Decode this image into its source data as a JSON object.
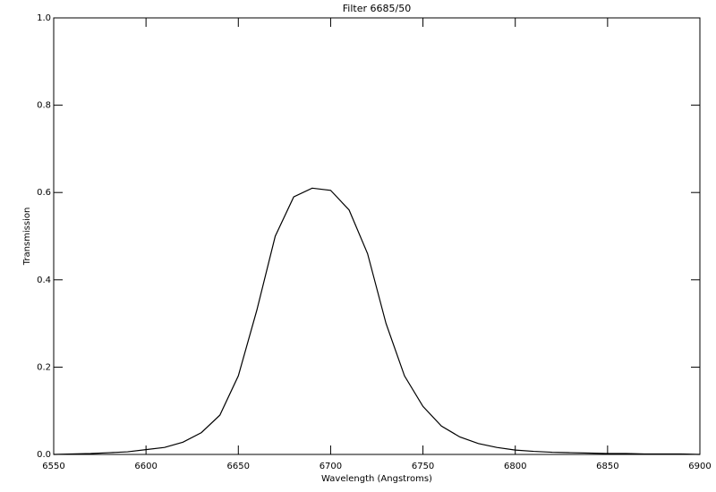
{
  "chart_data": {
    "type": "line",
    "title": "Filter 6685/50",
    "x_label": "Wavelength (Angstroms)",
    "y_label": "Transmission",
    "x": [
      6550,
      6560,
      6570,
      6580,
      6590,
      6600,
      6610,
      6620,
      6630,
      6640,
      6650,
      6660,
      6670,
      6680,
      6690,
      6700,
      6710,
      6720,
      6730,
      6740,
      6750,
      6760,
      6770,
      6780,
      6790,
      6800,
      6810,
      6820,
      6830,
      6840,
      6850,
      6860,
      6870,
      6880,
      6890,
      6900
    ],
    "series": [
      {
        "color": "#000000",
        "values": [
          0.0,
          0.001,
          0.002,
          0.004,
          0.006,
          0.011,
          0.016,
          0.028,
          0.05,
          0.09,
          0.18,
          0.33,
          0.5,
          0.59,
          0.61,
          0.605,
          0.56,
          0.46,
          0.3,
          0.18,
          0.11,
          0.065,
          0.04,
          0.025,
          0.016,
          0.01,
          0.007,
          0.005,
          0.004,
          0.003,
          0.002,
          0.002,
          0.001,
          0.001,
          0.001,
          0.0
        ]
      }
    ],
    "xlim": [
      6550,
      6900
    ],
    "xticks": [
      6550,
      6600,
      6650,
      6700,
      6750,
      6800,
      6850,
      6900
    ],
    "ylim": [
      0,
      1
    ],
    "yticks": [
      {
        "value": 0,
        "label": "0.0"
      },
      0.2,
      0.4,
      0.6,
      0.8,
      {
        "value": 1,
        "label": "1.0"
      }
    ],
    "grid": false
  }
}
